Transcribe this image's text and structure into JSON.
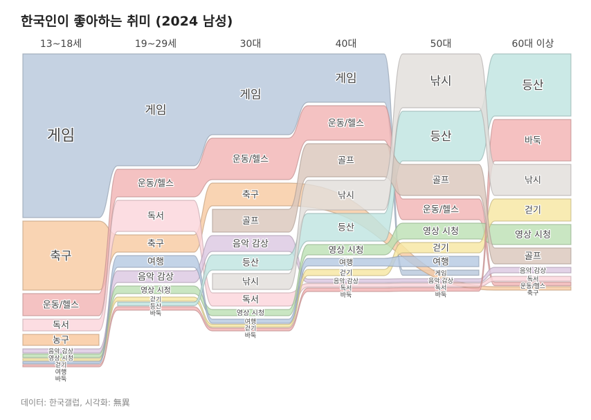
{
  "chart_data": {
    "type": "alluvial",
    "title": "한국인이 좋아하는 취미 (2024 남성)",
    "source": "데이터: 한국갤럽, 시각화: 無異",
    "columns": [
      "13~18세",
      "19~29세",
      "30대",
      "40대",
      "50대",
      "60대 이상"
    ],
    "colors": {
      "게임": "#b8c8dc",
      "축구": "#f8cba2",
      "운동/헬스": "#f2b5b5",
      "독서": "#fbd6dc",
      "농구": "#f9c89e",
      "음악 감상": "#dcc8e2",
      "영상 시청": "#bde0b4",
      "걷기": "#f7e6a2",
      "여행": "#b6c9e2",
      "바둑": "#f3b3b3",
      "골프": "#dbc7bc",
      "낚시": "#e2dedb",
      "등산": "#c0e4e0",
      "기타": "#f0a070"
    },
    "rankings": [
      [
        [
          "게임",
          47.4
        ],
        [
          "축구",
          20
        ],
        [
          "운동/헬스",
          6.4
        ],
        [
          "독서",
          3.4
        ],
        [
          "농구",
          3.2
        ],
        [
          "음악 감상",
          1.2
        ],
        [
          "영상 시청",
          1
        ],
        [
          "걷기",
          0.6
        ],
        [
          "여행",
          0.6
        ],
        [
          "바둑",
          0.6
        ]
      ],
      [
        [
          "게임",
          32.4
        ],
        [
          "운동/헬스",
          8
        ],
        [
          "독서",
          9
        ],
        [
          "축구",
          5
        ],
        [
          "여행",
          3.4
        ],
        [
          "음악 감상",
          3.4
        ],
        [
          "영상 시청",
          2.2
        ],
        [
          "걷기",
          1.2
        ],
        [
          "등산",
          1
        ],
        [
          "바둑",
          1
        ]
      ],
      [
        [
          "게임",
          23.4
        ],
        [
          "운동/헬스",
          12
        ],
        [
          "축구",
          6.6
        ],
        [
          "골프",
          6.6
        ],
        [
          "음악 감상",
          4.6
        ],
        [
          "등산",
          4.4
        ],
        [
          "낚시",
          4.6
        ],
        [
          "독서",
          3.8
        ],
        [
          "영상 시청",
          1.8
        ],
        [
          "여행",
          1.2
        ],
        [
          "걷기",
          0.8
        ],
        [
          "바둑",
          0.8
        ]
      ],
      [
        [
          "게임",
          14
        ],
        [
          "운동/헬스",
          10
        ],
        [
          "골프",
          9.6
        ],
        [
          "낚시",
          8.6
        ],
        [
          "등산",
          8
        ],
        [
          "영상 시청",
          3
        ],
        [
          "여행",
          2.2
        ],
        [
          "걷기",
          1.8
        ],
        [
          "음악 감상",
          1
        ],
        [
          "독서",
          1
        ],
        [
          "바둑",
          1
        ]
      ],
      [
        [
          "낚시",
          15.6
        ],
        [
          "등산",
          14.4
        ],
        [
          "골프",
          9
        ],
        [
          "운동/헬스",
          6
        ],
        [
          "영상 시청",
          4.6
        ],
        [
          "걷기",
          3
        ],
        [
          "여행",
          3
        ],
        [
          "게임",
          1.5
        ],
        [
          "음악 감상",
          1
        ],
        [
          "독서",
          1
        ],
        [
          "바둑",
          1
        ]
      ],
      [
        [
          "등산",
          18
        ],
        [
          "바둑",
          12
        ],
        [
          "낚시",
          9
        ],
        [
          "걷기",
          6.4
        ],
        [
          "영상 시청",
          5.8
        ],
        [
          "골프",
          4.6
        ],
        [
          "음악 감상",
          1.6
        ],
        [
          "독서",
          1.4
        ],
        [
          "운동/헬스",
          1
        ],
        [
          "축구",
          1
        ]
      ]
    ]
  }
}
